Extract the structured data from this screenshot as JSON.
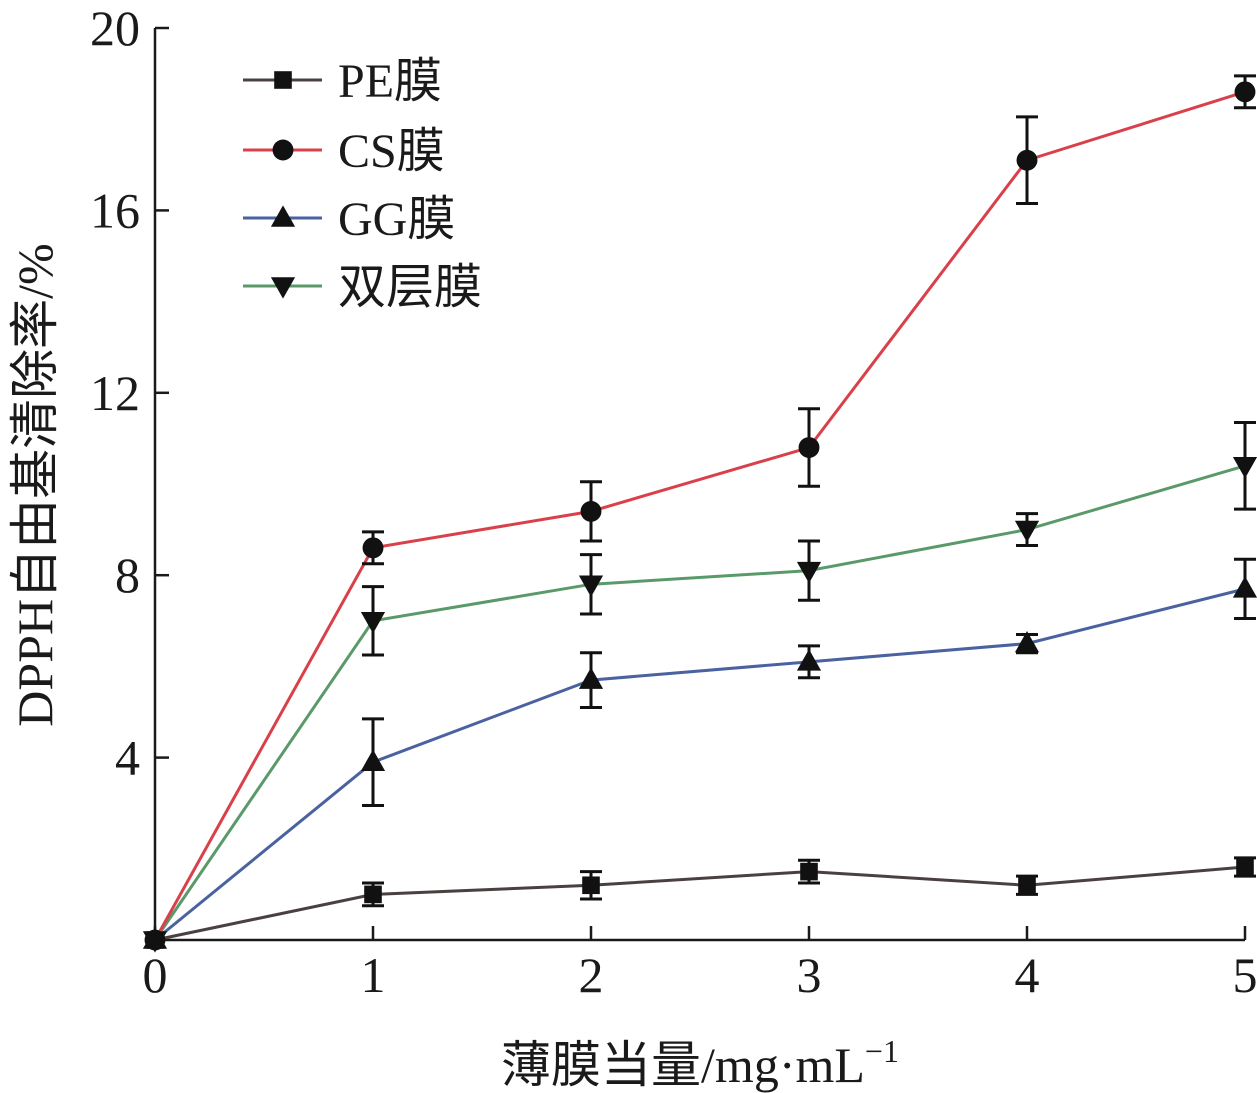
{
  "chart_data": {
    "type": "line",
    "xlabel": "薄膜当量/mg·mL",
    "xlabel_sup": "−1",
    "ylabel": "DPPH自由基清除率/%",
    "xlim": [
      0,
      5
    ],
    "ylim": [
      0,
      20
    ],
    "x_ticks": [
      "0",
      "1",
      "2",
      "3",
      "4",
      "5"
    ],
    "y_ticks": [
      "4",
      "8",
      "12",
      "16",
      "20"
    ],
    "grid": false,
    "legend_position": "top-left",
    "x": [
      0,
      1,
      2,
      3,
      4,
      5
    ],
    "series": [
      {
        "name": "PE膜",
        "color": "#4a4040",
        "marker": "square",
        "values": [
          0,
          1.0,
          1.2,
          1.5,
          1.2,
          1.6
        ],
        "errors": [
          0,
          0.25,
          0.3,
          0.25,
          0.2,
          0.2
        ]
      },
      {
        "name": "CS膜",
        "color": "#d9404a",
        "marker": "circle",
        "values": [
          0,
          8.6,
          9.4,
          10.8,
          17.1,
          18.6
        ],
        "errors": [
          0,
          0.35,
          0.65,
          0.85,
          0.95,
          0.35
        ]
      },
      {
        "name": "GG膜",
        "color": "#4a62a0",
        "marker": "triangle-up",
        "values": [
          0,
          3.9,
          5.7,
          6.1,
          6.5,
          7.7
        ],
        "errors": [
          0,
          0.95,
          0.6,
          0.35,
          0.2,
          0.65
        ]
      },
      {
        "name": "双层膜",
        "color": "#5a9a6a",
        "marker": "triangle-down",
        "values": [
          0,
          7.0,
          7.8,
          8.1,
          9.0,
          10.4
        ],
        "errors": [
          0,
          0.75,
          0.65,
          0.65,
          0.35,
          0.95
        ]
      }
    ]
  }
}
